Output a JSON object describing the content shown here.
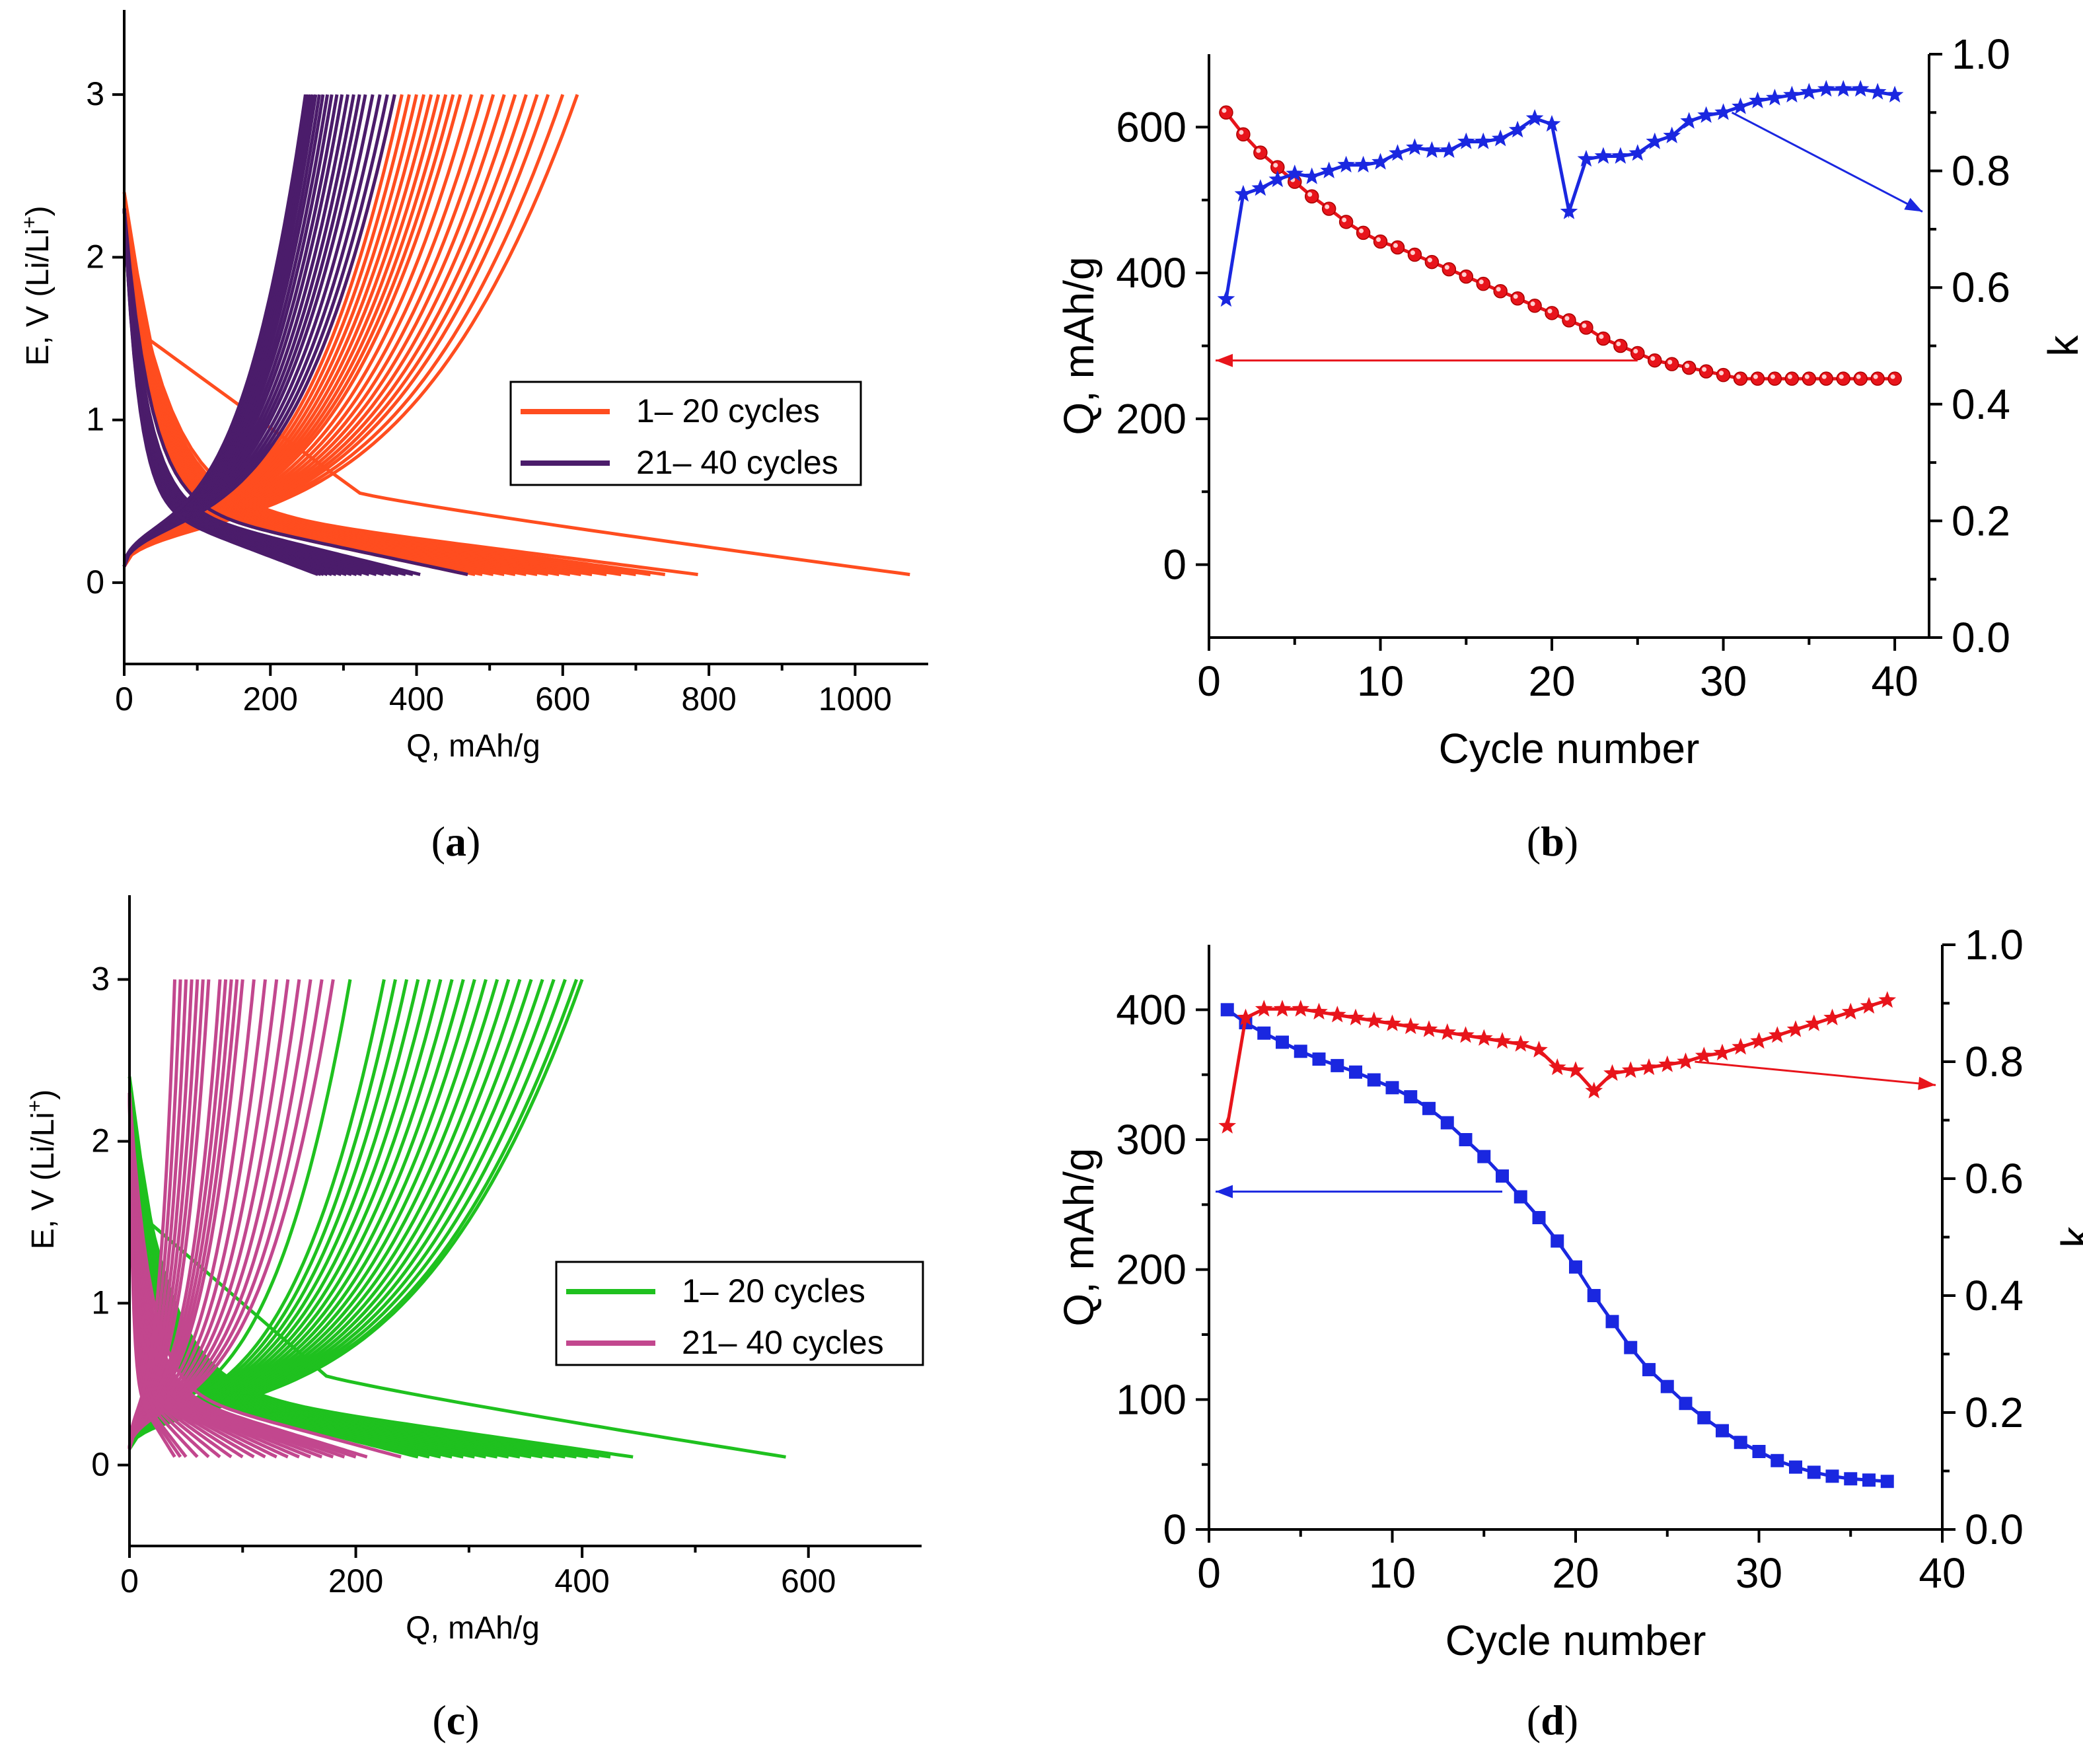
{
  "panels": {
    "a": {
      "caption_letter": "a"
    },
    "b": {
      "caption_letter": "b"
    },
    "c": {
      "caption_letter": "c"
    },
    "d": {
      "caption_letter": "d"
    }
  },
  "chart_data": [
    {
      "id": "a",
      "type": "line",
      "xlabel": "Q, mAh/g",
      "ylabel": "E, V (Li/Li",
      "ylabel_sup": "+",
      "ylabel_end": ")",
      "xlim": [
        0,
        1100
      ],
      "ylim": [
        -0.5,
        3.5
      ],
      "xticks": [
        0,
        200,
        400,
        600,
        800,
        1000
      ],
      "yticks": [
        0,
        1,
        2,
        3
      ],
      "legend": [
        "1– 20 cycles",
        "21– 40 cycles"
      ],
      "colors": [
        "#ff4d1f",
        "#4b1c6b"
      ],
      "groups": [
        {
          "name": "1– 20 cycles",
          "count": 20,
          "discharge_end": [
            1075,
            785,
            740,
            720,
            700,
            680,
            660,
            640,
            625,
            610,
            595,
            580,
            565,
            550,
            535,
            520,
            505,
            490,
            480,
            470
          ],
          "charge_end": [
            620,
            600,
            580,
            565,
            550,
            535,
            520,
            505,
            490,
            475,
            460,
            450,
            440,
            430,
            420,
            410,
            400,
            390,
            380,
            370
          ]
        },
        {
          "name": "21– 40 cycles",
          "count": 20,
          "discharge_end": [
            470,
            405,
            395,
            385,
            375,
            365,
            355,
            345,
            335,
            325,
            318,
            311,
            304,
            297,
            290,
            284,
            278,
            273,
            269,
            265
          ],
          "charge_end": [
            370,
            360,
            350,
            340,
            330,
            322,
            314,
            306,
            298,
            291,
            284,
            278,
            272,
            267,
            262,
            258,
            255,
            252,
            250,
            248
          ]
        }
      ]
    },
    {
      "id": "b",
      "type": "scatter",
      "xlabel": "Cycle number",
      "ylabel": "Q, mAh/g",
      "y2label": "k",
      "xlim": [
        0,
        42
      ],
      "ylim": [
        -100,
        700
      ],
      "y2lim": [
        0,
        1
      ],
      "xticks": [
        0,
        10,
        20,
        30,
        40
      ],
      "yticks": [
        0,
        200,
        400,
        600
      ],
      "y2ticks": [
        "0.0",
        "0.2",
        "0.4",
        "0.6",
        "0.8",
        "1.0"
      ],
      "series": [
        {
          "name": "Q",
          "axis": "left",
          "marker": "sphere",
          "color": "#e8141b",
          "x": [
            1,
            2,
            3,
            4,
            5,
            6,
            7,
            8,
            9,
            10,
            11,
            12,
            13,
            14,
            15,
            16,
            17,
            18,
            19,
            20,
            21,
            22,
            23,
            24,
            25,
            26,
            27,
            28,
            29,
            30,
            31,
            32,
            33,
            34,
            35,
            36,
            37,
            38,
            39,
            40
          ],
          "values": [
            620,
            590,
            565,
            545,
            525,
            505,
            488,
            470,
            455,
            443,
            435,
            425,
            415,
            405,
            395,
            385,
            375,
            365,
            355,
            345,
            335,
            325,
            310,
            300,
            290,
            280,
            275,
            270,
            265,
            260,
            255,
            255,
            255,
            255,
            255,
            255,
            255,
            255,
            255,
            255
          ]
        },
        {
          "name": "k",
          "axis": "right",
          "marker": "star",
          "color": "#1a27e0",
          "x": [
            1,
            2,
            3,
            4,
            5,
            6,
            7,
            8,
            9,
            10,
            11,
            12,
            13,
            14,
            15,
            16,
            17,
            18,
            19,
            20,
            21,
            22,
            23,
            24,
            25,
            26,
            27,
            28,
            29,
            30,
            31,
            32,
            33,
            34,
            35,
            36,
            37,
            38,
            39,
            40
          ],
          "values": [
            0.58,
            0.76,
            0.77,
            0.785,
            0.795,
            0.79,
            0.8,
            0.81,
            0.81,
            0.815,
            0.83,
            0.84,
            0.835,
            0.835,
            0.85,
            0.85,
            0.855,
            0.87,
            0.89,
            0.88,
            0.73,
            0.82,
            0.825,
            0.825,
            0.83,
            0.85,
            0.86,
            0.885,
            0.895,
            0.9,
            0.91,
            0.92,
            0.925,
            0.93,
            0.935,
            0.94,
            0.94,
            0.94,
            0.935,
            0.93
          ]
        }
      ]
    },
    {
      "id": "c",
      "type": "line",
      "xlabel": "Q, mAh/g",
      "ylabel": "E, V (Li/Li",
      "ylabel_sup": "+",
      "ylabel_end": ")",
      "xlim": [
        0,
        700
      ],
      "ylim": [
        -0.5,
        3.5
      ],
      "xticks": [
        0,
        200,
        400,
        600
      ],
      "yticks": [
        0,
        1,
        2,
        3
      ],
      "legend": [
        "1– 20 cycles",
        "21– 40 cycles"
      ],
      "colors": [
        "#1fc11f",
        "#c2478e"
      ],
      "groups": [
        {
          "name": "1– 20 cycles",
          "count": 20,
          "discharge_end": [
            580,
            445,
            425,
            415,
            405,
            395,
            385,
            375,
            365,
            355,
            345,
            335,
            325,
            315,
            305,
            295,
            285,
            275,
            265,
            255
          ],
          "charge_end": [
            400,
            395,
            385,
            375,
            365,
            355,
            345,
            335,
            325,
            315,
            305,
            295,
            285,
            275,
            265,
            255,
            245,
            235,
            225,
            195
          ]
        },
        {
          "name": "21– 40 cycles",
          "count": 20,
          "discharge_end": [
            240,
            210,
            200,
            190,
            180,
            170,
            160,
            150,
            140,
            130,
            120,
            110,
            100,
            90,
            80,
            70,
            60,
            50,
            45,
            40
          ],
          "charge_end": [
            180,
            170,
            160,
            150,
            140,
            130,
            120,
            110,
            100,
            95,
            90,
            85,
            80,
            70,
            65,
            60,
            55,
            50,
            45,
            40
          ]
        }
      ]
    },
    {
      "id": "d",
      "type": "scatter",
      "xlabel": "Cycle number",
      "ylabel": "Q, mAh/g",
      "y2label": "k",
      "xlim": [
        0,
        40
      ],
      "ylim": [
        0,
        450
      ],
      "y2lim": [
        0,
        1
      ],
      "xticks": [
        0,
        10,
        20,
        30,
        40
      ],
      "yticks": [
        0,
        100,
        200,
        300,
        400
      ],
      "y2ticks": [
        "0.0",
        "0.2",
        "0.4",
        "0.6",
        "0.8",
        "1.0"
      ],
      "series": [
        {
          "name": "Q",
          "axis": "left",
          "marker": "square",
          "color": "#1a27e0",
          "x": [
            1,
            2,
            3,
            4,
            5,
            6,
            7,
            8,
            9,
            10,
            11,
            12,
            13,
            14,
            15,
            16,
            17,
            18,
            19,
            20,
            21,
            22,
            23,
            24,
            25,
            26,
            27,
            28,
            29,
            30,
            31,
            32,
            33,
            34,
            35,
            36,
            37
          ],
          "values": [
            400,
            390,
            382,
            375,
            368,
            362,
            357,
            352,
            346,
            340,
            333,
            324,
            313,
            300,
            287,
            272,
            256,
            240,
            222,
            202,
            180,
            160,
            140,
            123,
            110,
            97,
            86,
            76,
            67,
            60,
            53,
            48,
            44,
            41,
            39,
            38,
            37
          ]
        },
        {
          "name": "k",
          "axis": "right",
          "marker": "star",
          "color": "#e8141b",
          "x": [
            1,
            2,
            3,
            4,
            5,
            6,
            7,
            8,
            9,
            10,
            11,
            12,
            13,
            14,
            15,
            16,
            17,
            18,
            19,
            20,
            21,
            22,
            23,
            24,
            25,
            26,
            27,
            28,
            29,
            30,
            31,
            32,
            33,
            34,
            35,
            36,
            37
          ],
          "values": [
            0.69,
            0.875,
            0.89,
            0.89,
            0.89,
            0.885,
            0.88,
            0.875,
            0.87,
            0.865,
            0.86,
            0.855,
            0.85,
            0.845,
            0.84,
            0.835,
            0.83,
            0.82,
            0.79,
            0.785,
            0.75,
            0.78,
            0.785,
            0.79,
            0.795,
            0.8,
            0.81,
            0.815,
            0.825,
            0.835,
            0.845,
            0.855,
            0.865,
            0.875,
            0.885,
            0.895,
            0.905
          ]
        }
      ]
    }
  ]
}
